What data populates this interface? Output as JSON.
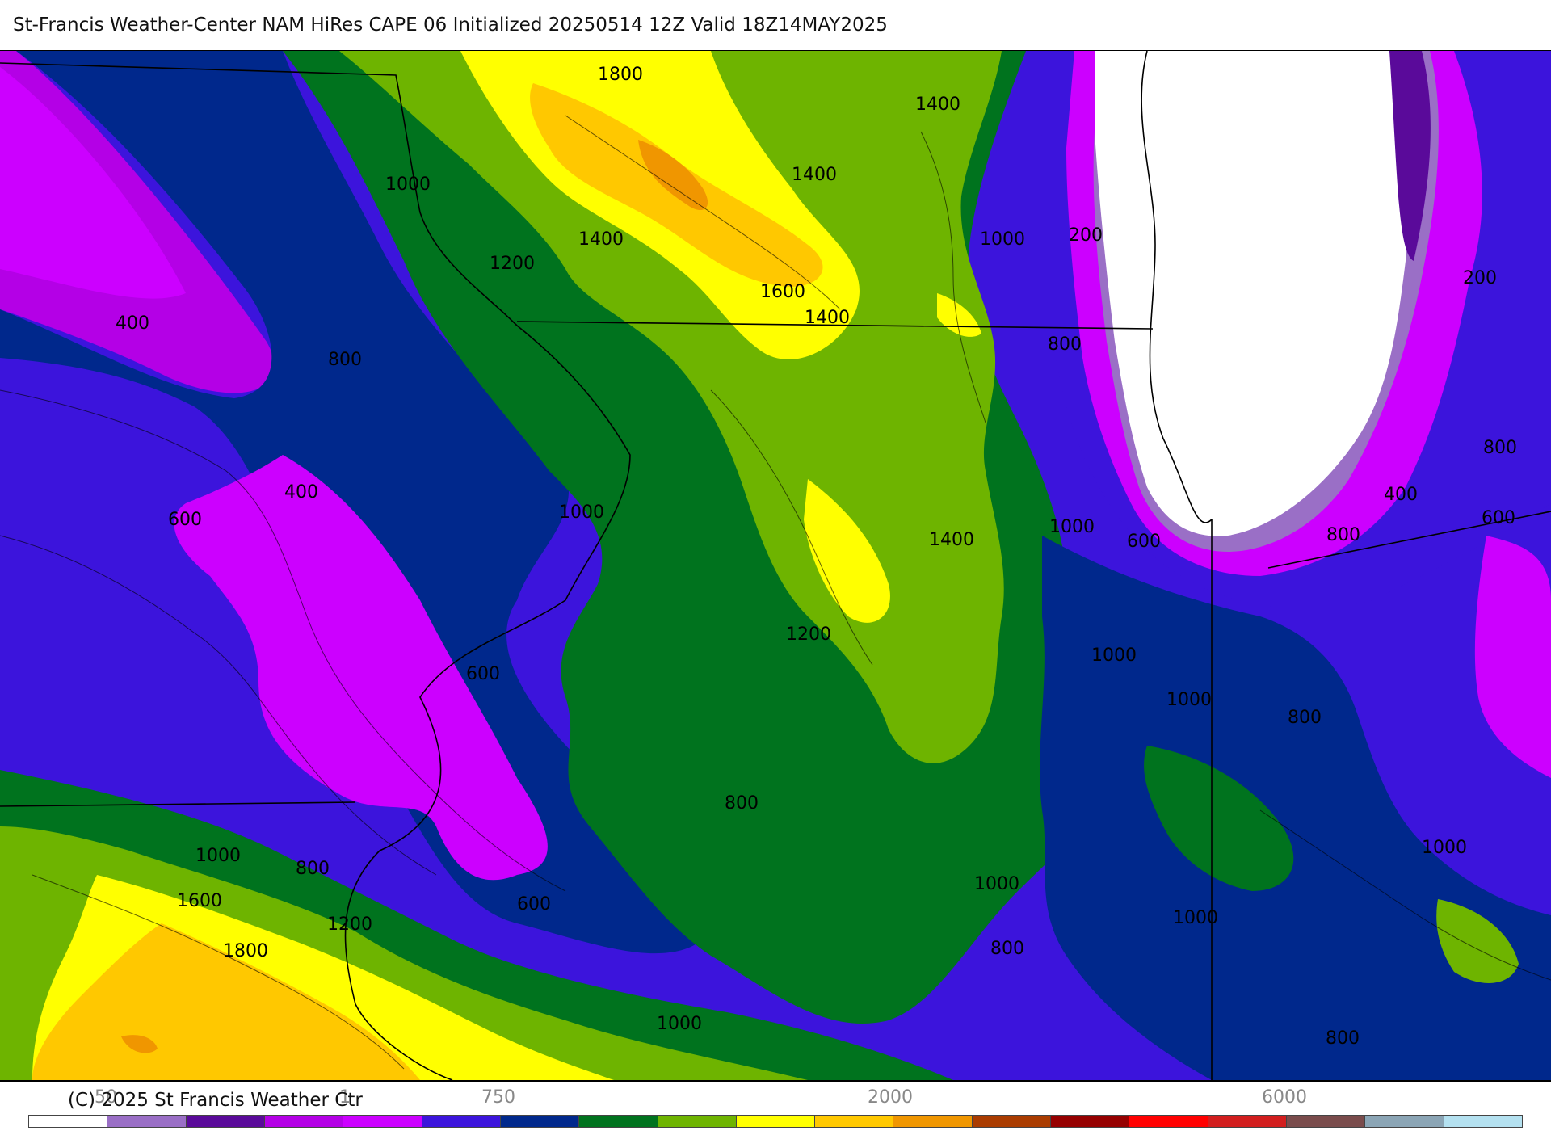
{
  "title": "St-Francis Weather-Center NAM HiRes CAPE  06 Initialized 20250514 12Z Valid 18Z14MAY2025",
  "copyright": "(C) 2025 St Francis Weather Ctr",
  "colorbar": {
    "colors": [
      "#ffffff",
      "#9a6fc6",
      "#5a0a9a",
      "#b400e6",
      "#cc00ff",
      "#3c14dc",
      "#00288c",
      "#00731e",
      "#6eb400",
      "#ffff00",
      "#ffc800",
      "#f09600",
      "#aa3c00",
      "#960000",
      "#ff0000",
      "#d21e1e",
      "#7a4c4c",
      "#8ba5b5",
      "#b4e1f0"
    ],
    "tick_labels": [
      "750",
      "2000",
      "6000"
    ],
    "faint_labels": [
      "50",
      "1"
    ]
  },
  "contour_labels": [
    "1800",
    "1400",
    "1000",
    "1400",
    "1400",
    "200",
    "1000",
    "1200",
    "1600",
    "1400",
    "200",
    "400",
    "800",
    "800",
    "800",
    "400",
    "1000",
    "1400",
    "800",
    "600",
    "1000",
    "600",
    "400",
    "600",
    "1200",
    "600",
    "1000",
    "1000",
    "800",
    "1000",
    "800",
    "800",
    "1000",
    "1600",
    "1200",
    "1000",
    "600",
    "1800",
    "800",
    "1000",
    "800",
    "1000"
  ]
}
